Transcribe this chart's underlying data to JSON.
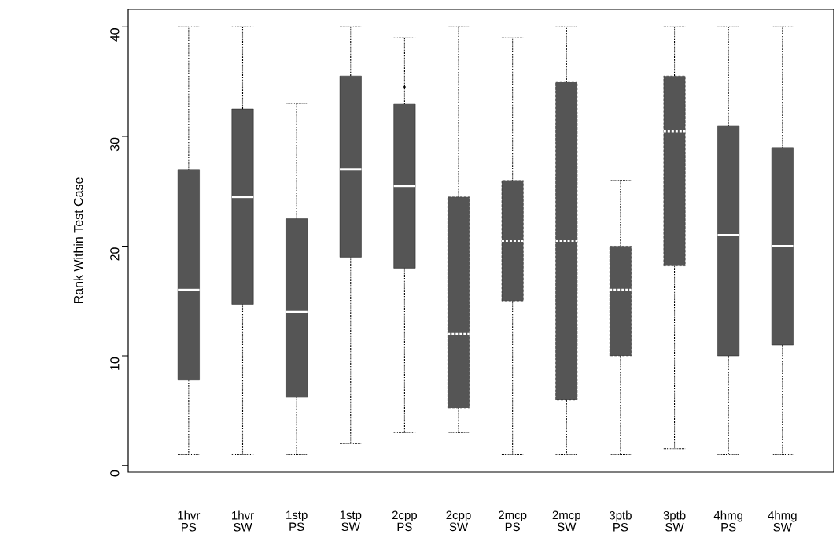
{
  "chart_data": {
    "type": "box",
    "ylabel": "Rank Within Test Case",
    "categories": [
      "1hvr PS",
      "1hvr SW",
      "1stp PS",
      "1stp SW",
      "2cpp PS",
      "2cpp SW",
      "2mcp PS",
      "2mcp SW",
      "3ptb PS",
      "3ptb SW",
      "4hmg PS",
      "4hmg SW"
    ],
    "color": "#555555",
    "boxes": [
      {
        "low": 1,
        "q1": 7.8,
        "median": 16,
        "q3": 27,
        "high": 40
      },
      {
        "low": 1,
        "q1": 14.7,
        "median": 24.5,
        "q3": 32.5,
        "high": 40
      },
      {
        "low": 1,
        "q1": 6.2,
        "median": 14,
        "q3": 22.5,
        "high": 33
      },
      {
        "low": 2,
        "q1": 19,
        "median": 27,
        "q3": 35.5,
        "high": 40
      },
      {
        "low": 3,
        "q1": 18,
        "median": 25.5,
        "q3": 33,
        "high": 39,
        "outliers": [
          34.5
        ]
      },
      {
        "low": 3,
        "q1": 5.2,
        "median": 12,
        "q3": 24.5,
        "high": 40
      },
      {
        "low": 1,
        "q1": 15,
        "median": 20.5,
        "q3": 26,
        "high": 39
      },
      {
        "low": 1,
        "q1": 6,
        "median": 20.5,
        "q3": 35,
        "high": 40
      },
      {
        "low": 1,
        "q1": 10,
        "median": 16,
        "q3": 20,
        "high": 26
      },
      {
        "low": 1.5,
        "q1": 18.2,
        "median": 30.5,
        "q3": 35.5,
        "high": 40
      },
      {
        "low": 1,
        "q1": 10,
        "median": 21,
        "q3": 31,
        "high": 40
      },
      {
        "low": 1,
        "q1": 11,
        "median": 20,
        "q3": 29,
        "high": 40
      }
    ],
    "ylim": [
      -0.6,
      41.6
    ],
    "yticks": [
      0,
      10,
      20,
      30,
      40
    ],
    "grid": false
  }
}
